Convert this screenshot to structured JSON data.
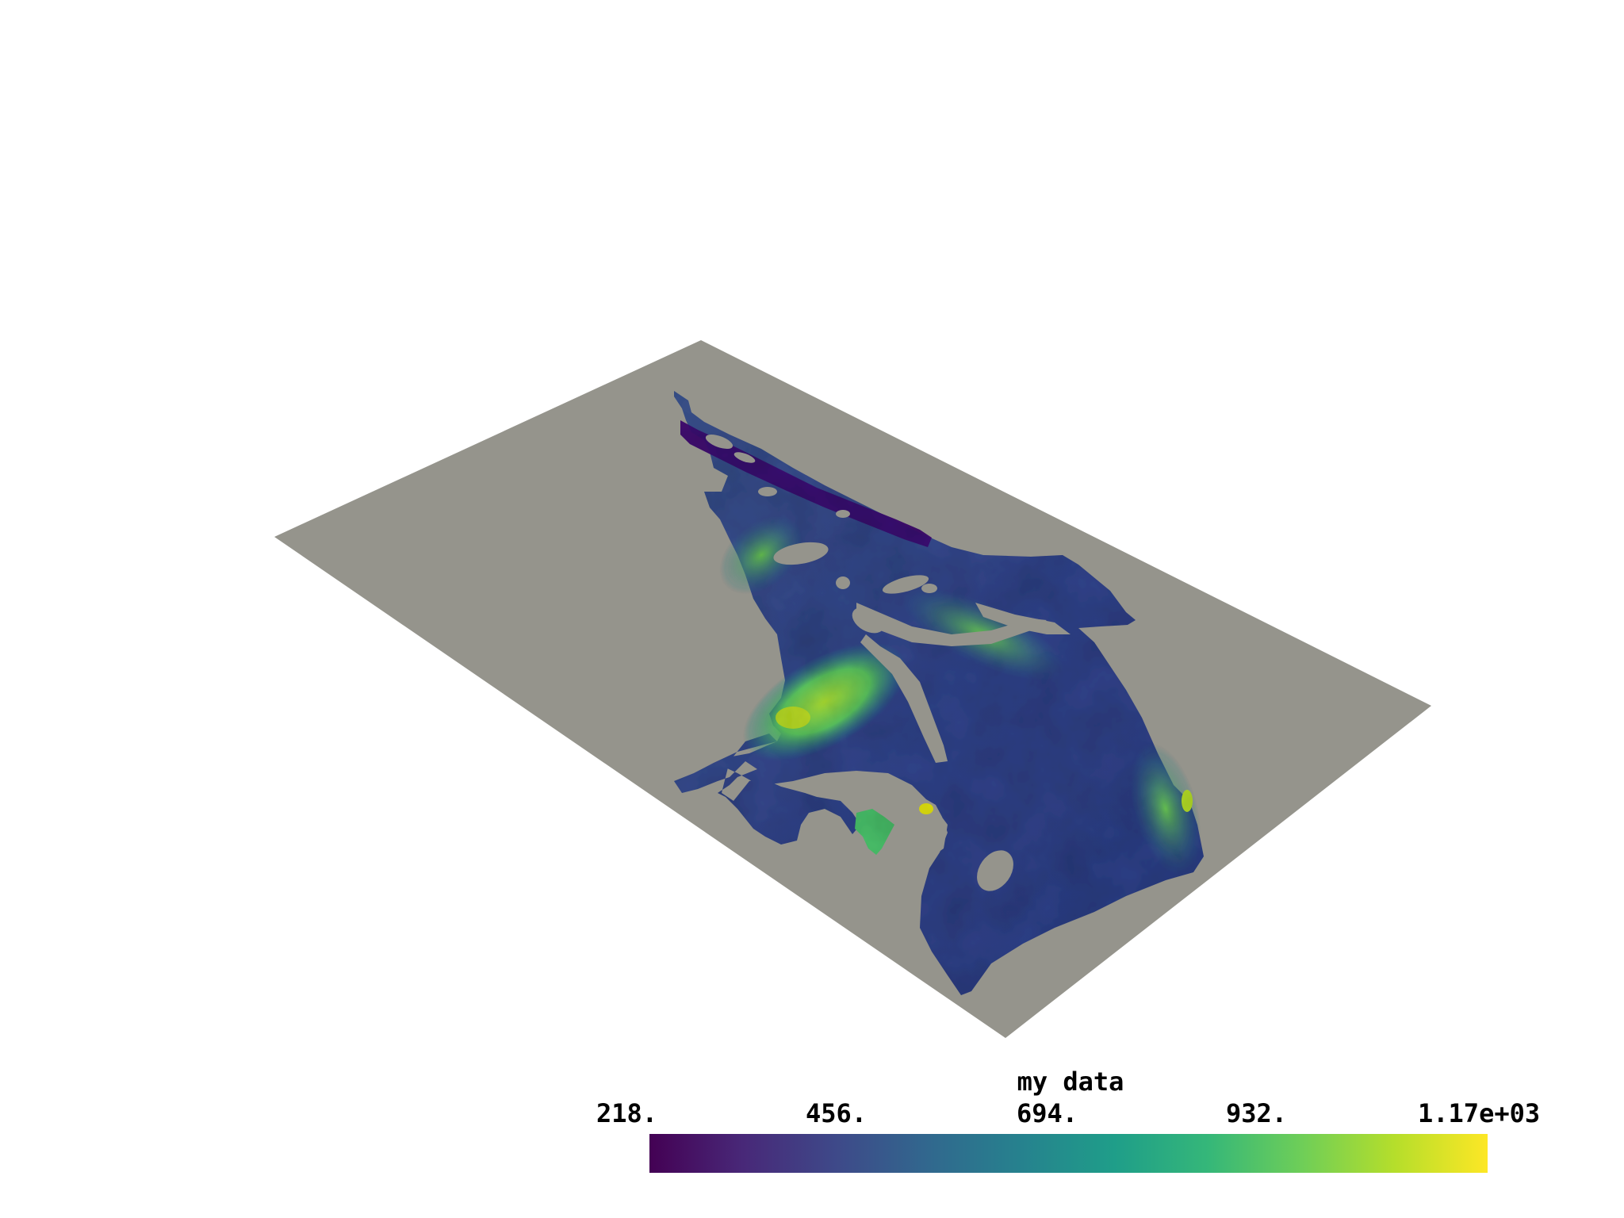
{
  "colorbar": {
    "title": "my data",
    "ticks": [
      "218.",
      "456.",
      "694.",
      "932.",
      "1.17e+03"
    ],
    "range": [
      218,
      1170
    ],
    "colormap": "viridis",
    "stops": [
      "#440154",
      "#482878",
      "#3e4989",
      "#31688e",
      "#26828e",
      "#1f9e89",
      "#35b779",
      "#6ece58",
      "#b5de2b",
      "#fde725"
    ]
  },
  "scene": {
    "plane_color": "#95948c",
    "background_color": "#ffffff"
  }
}
